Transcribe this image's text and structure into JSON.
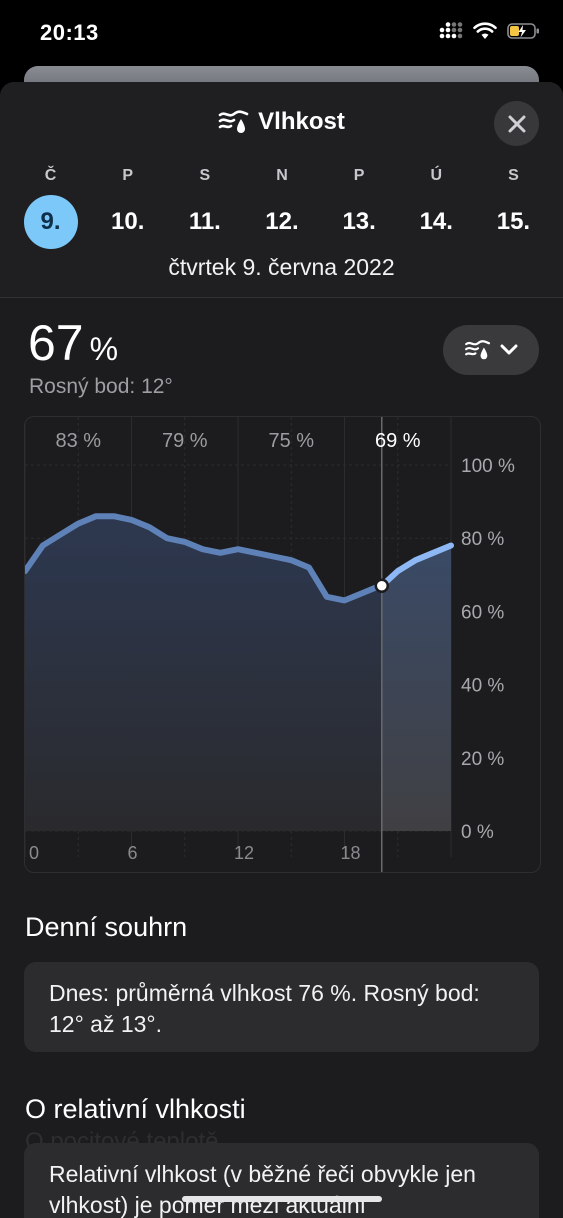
{
  "status_bar": {
    "time": "20:13"
  },
  "header": {
    "title": "Vlhkost",
    "title_icon": "humidity-icon",
    "close_icon": "close-icon"
  },
  "days": [
    {
      "letter": "Č",
      "num": "9.",
      "selected": true
    },
    {
      "letter": "P",
      "num": "10.",
      "selected": false
    },
    {
      "letter": "S",
      "num": "11.",
      "selected": false
    },
    {
      "letter": "N",
      "num": "12.",
      "selected": false
    },
    {
      "letter": "P",
      "num": "13.",
      "selected": false
    },
    {
      "letter": "Ú",
      "num": "14.",
      "selected": false
    },
    {
      "letter": "S",
      "num": "15.",
      "selected": false
    }
  ],
  "date_line": "čtvrtek 9. června 2022",
  "current": {
    "value": "67",
    "unit": "%",
    "dewpoint": "Rosný bod: 12°"
  },
  "selector": {
    "icon": "humidity-icon",
    "chevron": "chevron-down-icon"
  },
  "colors": {
    "accent": "#7cc8f8",
    "line_past": "#5e82b8",
    "line_future": "#8db8f5",
    "background": "#1c1c1e",
    "card": "#2c2c2e"
  },
  "chart_data": {
    "type": "area",
    "top_labels": [
      "83 %",
      "79 %",
      "75 %",
      "69 %"
    ],
    "x_ticks": [
      "0",
      "6",
      "12",
      "18"
    ],
    "y_ticks": [
      "100 %",
      "80 %",
      "60 %",
      "40 %",
      "20 %",
      "0 %"
    ],
    "ylim": [
      0,
      100
    ],
    "xlim": [
      0,
      24
    ],
    "current_hour": 20.1,
    "current_value": 67,
    "x": [
      0,
      1,
      2,
      3,
      4,
      5,
      6,
      7,
      8,
      9,
      10,
      11,
      12,
      13,
      14,
      15,
      16,
      17,
      18,
      19,
      20,
      21,
      22,
      23,
      24
    ],
    "y": [
      71,
      78,
      81,
      84,
      86,
      86,
      85,
      83,
      80,
      79,
      77,
      76,
      77,
      76,
      75,
      74,
      72,
      64,
      63,
      65,
      67,
      71,
      74,
      76,
      78
    ],
    "grid": true
  },
  "summary": {
    "title": "Denní souhrn",
    "text": "Dnes: průměrná vlhkost 76 %. Rosný bod: 12° až 13°."
  },
  "about": {
    "title": "O relativní vlhkosti",
    "text": "Relativní vlhkost (v běžné řeči obvykle jen vlhkost) je poměr mezi aktuální",
    "ghost_text": "O pocitové teplotě"
  }
}
